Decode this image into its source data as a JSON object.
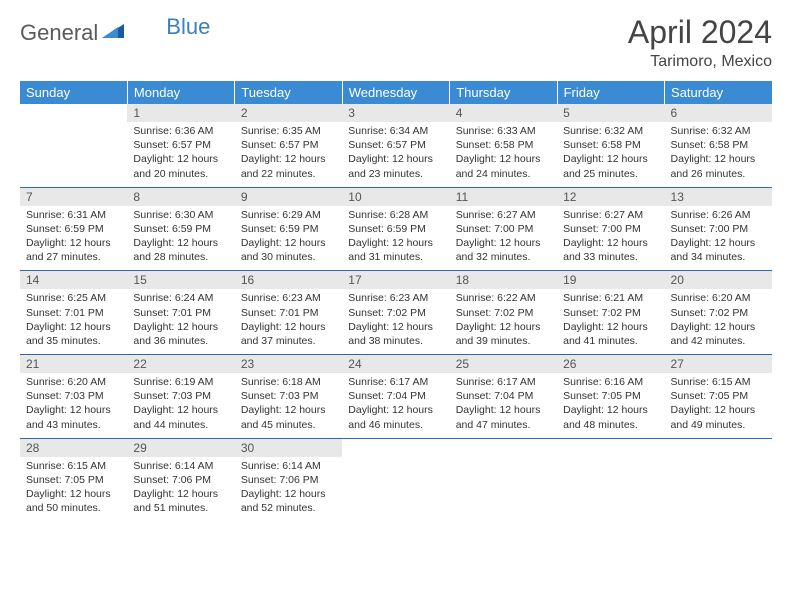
{
  "logo": {
    "general": "General",
    "blue": "Blue"
  },
  "title": "April 2024",
  "location": "Tarimoro, Mexico",
  "colors": {
    "header_bg": "#3b8bd4",
    "header_text": "#ffffff",
    "daynum_bg": "#e8e8e8",
    "row_divider": "#2a6aa8",
    "logo_blue": "#3b7fc4",
    "logo_dark_blue": "#1a5a9e"
  },
  "dayNames": [
    "Sunday",
    "Monday",
    "Tuesday",
    "Wednesday",
    "Thursday",
    "Friday",
    "Saturday"
  ],
  "weeks": [
    [
      {
        "n": "",
        "sr": "",
        "ss": "",
        "dl": ""
      },
      {
        "n": "1",
        "sr": "6:36 AM",
        "ss": "6:57 PM",
        "dl": "12 hours and 20 minutes."
      },
      {
        "n": "2",
        "sr": "6:35 AM",
        "ss": "6:57 PM",
        "dl": "12 hours and 22 minutes."
      },
      {
        "n": "3",
        "sr": "6:34 AM",
        "ss": "6:57 PM",
        "dl": "12 hours and 23 minutes."
      },
      {
        "n": "4",
        "sr": "6:33 AM",
        "ss": "6:58 PM",
        "dl": "12 hours and 24 minutes."
      },
      {
        "n": "5",
        "sr": "6:32 AM",
        "ss": "6:58 PM",
        "dl": "12 hours and 25 minutes."
      },
      {
        "n": "6",
        "sr": "6:32 AM",
        "ss": "6:58 PM",
        "dl": "12 hours and 26 minutes."
      }
    ],
    [
      {
        "n": "7",
        "sr": "6:31 AM",
        "ss": "6:59 PM",
        "dl": "12 hours and 27 minutes."
      },
      {
        "n": "8",
        "sr": "6:30 AM",
        "ss": "6:59 PM",
        "dl": "12 hours and 28 minutes."
      },
      {
        "n": "9",
        "sr": "6:29 AM",
        "ss": "6:59 PM",
        "dl": "12 hours and 30 minutes."
      },
      {
        "n": "10",
        "sr": "6:28 AM",
        "ss": "6:59 PM",
        "dl": "12 hours and 31 minutes."
      },
      {
        "n": "11",
        "sr": "6:27 AM",
        "ss": "7:00 PM",
        "dl": "12 hours and 32 minutes."
      },
      {
        "n": "12",
        "sr": "6:27 AM",
        "ss": "7:00 PM",
        "dl": "12 hours and 33 minutes."
      },
      {
        "n": "13",
        "sr": "6:26 AM",
        "ss": "7:00 PM",
        "dl": "12 hours and 34 minutes."
      }
    ],
    [
      {
        "n": "14",
        "sr": "6:25 AM",
        "ss": "7:01 PM",
        "dl": "12 hours and 35 minutes."
      },
      {
        "n": "15",
        "sr": "6:24 AM",
        "ss": "7:01 PM",
        "dl": "12 hours and 36 minutes."
      },
      {
        "n": "16",
        "sr": "6:23 AM",
        "ss": "7:01 PM",
        "dl": "12 hours and 37 minutes."
      },
      {
        "n": "17",
        "sr": "6:23 AM",
        "ss": "7:02 PM",
        "dl": "12 hours and 38 minutes."
      },
      {
        "n": "18",
        "sr": "6:22 AM",
        "ss": "7:02 PM",
        "dl": "12 hours and 39 minutes."
      },
      {
        "n": "19",
        "sr": "6:21 AM",
        "ss": "7:02 PM",
        "dl": "12 hours and 41 minutes."
      },
      {
        "n": "20",
        "sr": "6:20 AM",
        "ss": "7:02 PM",
        "dl": "12 hours and 42 minutes."
      }
    ],
    [
      {
        "n": "21",
        "sr": "6:20 AM",
        "ss": "7:03 PM",
        "dl": "12 hours and 43 minutes."
      },
      {
        "n": "22",
        "sr": "6:19 AM",
        "ss": "7:03 PM",
        "dl": "12 hours and 44 minutes."
      },
      {
        "n": "23",
        "sr": "6:18 AM",
        "ss": "7:03 PM",
        "dl": "12 hours and 45 minutes."
      },
      {
        "n": "24",
        "sr": "6:17 AM",
        "ss": "7:04 PM",
        "dl": "12 hours and 46 minutes."
      },
      {
        "n": "25",
        "sr": "6:17 AM",
        "ss": "7:04 PM",
        "dl": "12 hours and 47 minutes."
      },
      {
        "n": "26",
        "sr": "6:16 AM",
        "ss": "7:05 PM",
        "dl": "12 hours and 48 minutes."
      },
      {
        "n": "27",
        "sr": "6:15 AM",
        "ss": "7:05 PM",
        "dl": "12 hours and 49 minutes."
      }
    ],
    [
      {
        "n": "28",
        "sr": "6:15 AM",
        "ss": "7:05 PM",
        "dl": "12 hours and 50 minutes."
      },
      {
        "n": "29",
        "sr": "6:14 AM",
        "ss": "7:06 PM",
        "dl": "12 hours and 51 minutes."
      },
      {
        "n": "30",
        "sr": "6:14 AM",
        "ss": "7:06 PM",
        "dl": "12 hours and 52 minutes."
      },
      {
        "n": "",
        "sr": "",
        "ss": "",
        "dl": ""
      },
      {
        "n": "",
        "sr": "",
        "ss": "",
        "dl": ""
      },
      {
        "n": "",
        "sr": "",
        "ss": "",
        "dl": ""
      },
      {
        "n": "",
        "sr": "",
        "ss": "",
        "dl": ""
      }
    ]
  ],
  "labels": {
    "sunrise": "Sunrise: ",
    "sunset": "Sunset: ",
    "daylight": "Daylight: "
  }
}
